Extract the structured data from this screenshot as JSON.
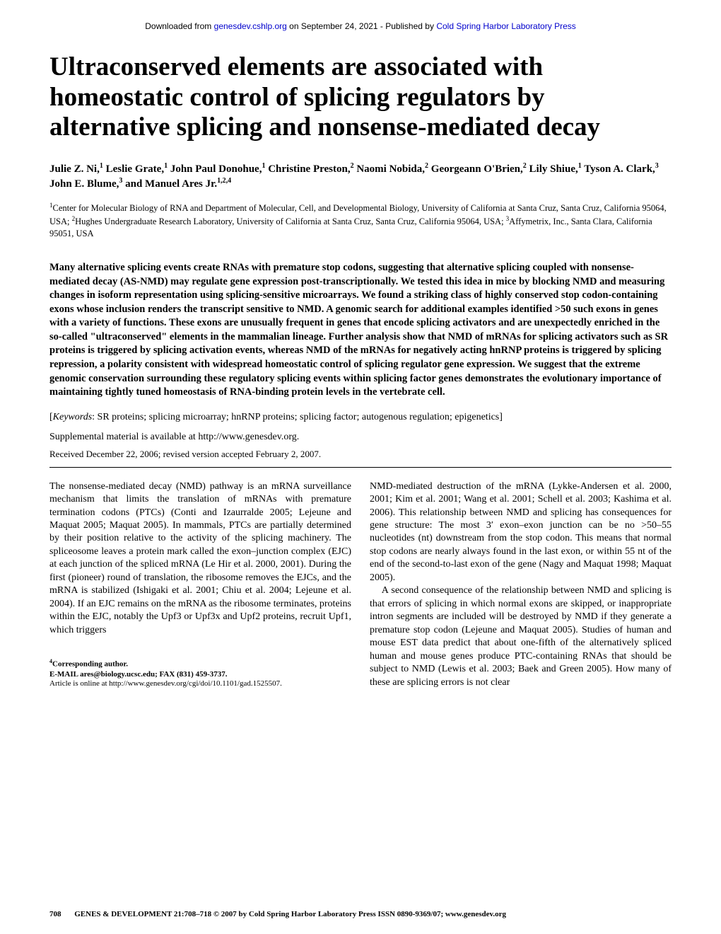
{
  "download_bar": {
    "prefix": "Downloaded from ",
    "link1": "genesdev.cshlp.org",
    "mid": " on September 24, 2021 - Published by ",
    "link2": "Cold Spring Harbor Laboratory Press"
  },
  "title": "Ultraconserved elements are associated with homeostatic control of splicing regulators by alternative splicing and nonsense-mediated decay",
  "authors_html": "Julie Z. Ni,<sup>1</sup> Leslie Grate,<sup>1</sup> John Paul Donohue,<sup>1</sup> Christine Preston,<sup>2</sup> Naomi Nobida,<sup>2</sup> Georgeann O'Brien,<sup>2</sup> Lily Shiue,<sup>1</sup> Tyson A. Clark,<sup>3</sup> John E. Blume,<sup>3</sup> and Manuel Ares Jr.<sup>1,2,4</sup>",
  "affiliations_html": "<sup>1</sup>Center for Molecular Biology of RNA and Department of Molecular, Cell, and Developmental Biology, University of California at Santa Cruz, Santa Cruz, California 95064, USA; <sup>2</sup>Hughes Undergraduate Research Laboratory, University of California at Santa Cruz, Santa Cruz, California 95064, USA; <sup>3</sup>Affymetrix, Inc., Santa Clara, California 95051, USA",
  "abstract": "Many alternative splicing events create RNAs with premature stop codons, suggesting that alternative splicing coupled with nonsense-mediated decay (AS-NMD) may regulate gene expression post-transcriptionally. We tested this idea in mice by blocking NMD and measuring changes in isoform representation using splicing-sensitive microarrays. We found a striking class of highly conserved stop codon-containing exons whose inclusion renders the transcript sensitive to NMD. A genomic search for additional examples identified >50 such exons in genes with a variety of functions. These exons are unusually frequent in genes that encode splicing activators and are unexpectedly enriched in the so-called \"ultraconserved\" elements in the mammalian lineage. Further analysis show that NMD of mRNAs for splicing activators such as SR proteins is triggered by splicing activation events, whereas NMD of the mRNAs for negatively acting hnRNP proteins is triggered by splicing repression, a polarity consistent with widespread homeostatic control of splicing regulator gene expression. We suggest that the extreme genomic conservation surrounding these regulatory splicing events within splicing factor genes demonstrates the evolutionary importance of maintaining tightly tuned homeostasis of RNA-binding protein levels in the vertebrate cell.",
  "keywords": {
    "label": "Keywords",
    "text": ": SR proteins; splicing microarray; hnRNP proteins; splicing factor; autogenous regulation; epigenetics]"
  },
  "supplemental": "Supplemental material is available at http://www.genesdev.org.",
  "received": "Received December 22, 2006; revised version accepted February 2, 2007.",
  "body": {
    "left": "The nonsense-mediated decay (NMD) pathway is an mRNA surveillance mechanism that limits the translation of mRNAs with premature termination codons (PTCs) (Conti and Izaurralde 2005; Lejeune and Maquat 2005; Maquat 2005). In mammals, PTCs are partially determined by their position relative to the activity of the splicing machinery. The spliceosome leaves a protein mark called the exon–junction complex (EJC) at each junction of the spliced mRNA (Le Hir et al. 2000, 2001). During the first (pioneer) round of translation, the ribosome removes the EJCs, and the mRNA is stabilized (Ishigaki et al. 2001; Chiu et al. 2004; Lejeune et al. 2004). If an EJC remains on the mRNA as the ribosome terminates, proteins within the EJC, notably the Upf3 or Upf3x and Upf2 proteins, recruit Upf1, which triggers",
    "right_p1": "NMD-mediated destruction of the mRNA (Lykke-Andersen et al. 2000, 2001; Kim et al. 2001; Wang et al. 2001; Schell et al. 2003; Kashima et al. 2006). This relationship between NMD and splicing has consequences for gene structure: The most 3′ exon–exon junction can be no >50–55 nucleotides (nt) downstream from the stop codon. This means that normal stop codons are nearly always found in the last exon, or within 55 nt of the end of the second-to-last exon of the gene (Nagy and Maquat 1998; Maquat 2005).",
    "right_p2": "A second consequence of the relationship between NMD and splicing is that errors of splicing in which normal exons are skipped, or inappropriate intron segments are included will be destroyed by NMD if they generate a premature stop codon (Lejeune and Maquat 2005). Studies of human and mouse EST data predict that about one-fifth of the alternatively spliced human and mouse genes produce PTC-containing RNAs that should be subject to NMD (Lewis et al. 2003; Baek and Green 2005). How many of these are splicing errors is not clear"
  },
  "corresponding": {
    "sup": "4",
    "label": "Corresponding author.",
    "email_line": "E-MAIL ares@biology.ucsc.edu; FAX (831) 459-3737.",
    "article_line": "Article is online at http://www.genesdev.org/cgi/doi/10.1101/gad.1525507."
  },
  "footer": {
    "page": "708",
    "journal": "GENES & DEVELOPMENT 21:708–718 © 2007 by Cold Spring Harbor Laboratory Press ISSN 0890-9369/07; www.genesdev.org"
  },
  "colors": {
    "link": "#0000cc",
    "text": "#000000",
    "background": "#ffffff"
  }
}
